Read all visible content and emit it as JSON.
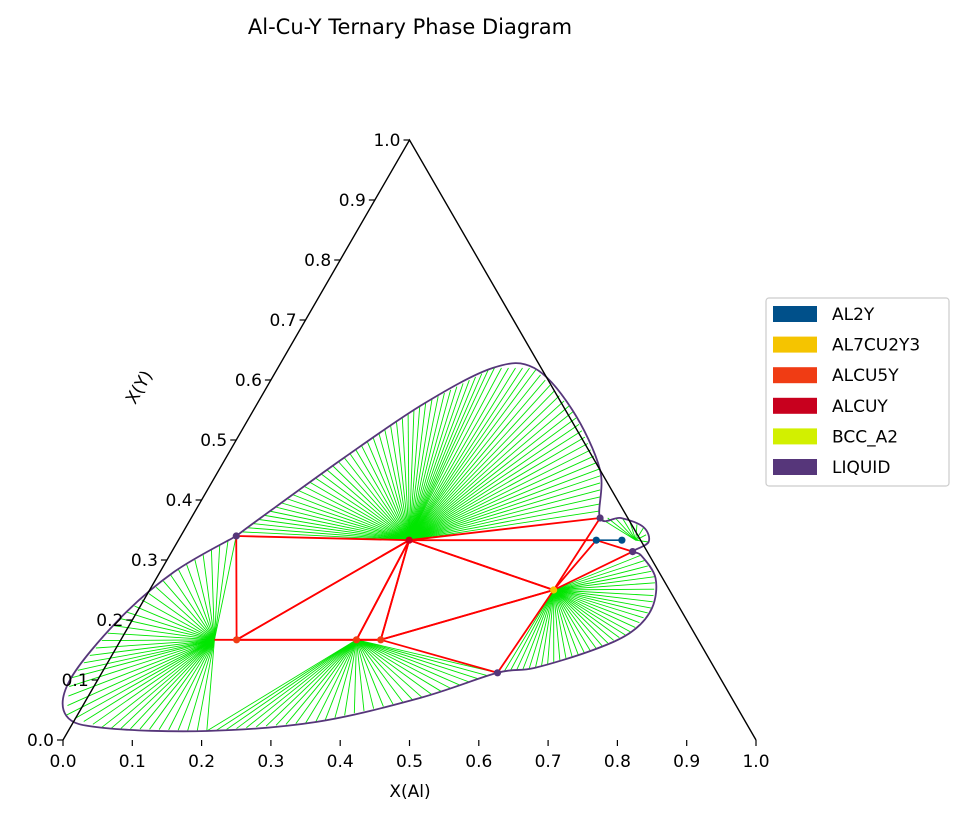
{
  "title": "Al-Cu-Y Ternary Phase Diagram",
  "xlabel": "X(Al)",
  "ylabel": "X(Y)",
  "xticks": [
    "0.0",
    "0.1",
    "0.2",
    "0.3",
    "0.4",
    "0.5",
    "0.6",
    "0.7",
    "0.8",
    "0.9",
    "1.0"
  ],
  "yticks": [
    "0.0",
    "0.1",
    "0.2",
    "0.3",
    "0.4",
    "0.5",
    "0.6",
    "0.7",
    "0.8",
    "0.9",
    "1.0"
  ],
  "legend": [
    {
      "label": "AL2Y",
      "color": "#00508a"
    },
    {
      "label": "AL7CU2Y3",
      "color": "#f5c400"
    },
    {
      "label": "ALCU5Y",
      "color": "#f03c14"
    },
    {
      "label": "ALCUY",
      "color": "#c8001e"
    },
    {
      "label": "BCC_A2",
      "color": "#d2f000"
    },
    {
      "label": "LIQUID",
      "color": "#56367a"
    }
  ],
  "chart_data": {
    "type": "ternary",
    "axes": {
      "x": "X(Al)",
      "y": "X(Y)",
      "xlim": [
        0,
        1
      ],
      "ylim": [
        0,
        1
      ]
    },
    "legend_position": "right",
    "colors": {
      "tieline": "#00e600",
      "triangle": "#ff0000",
      "liquid": "#56367a",
      "al2y_tie": "#00508a"
    },
    "phase_points": [
      {
        "phase": "ALCUY",
        "x": 0.333,
        "y": 0.333
      },
      {
        "phase": "ALCU5Y",
        "x": 0.167,
        "y": 0.167
      },
      {
        "phase": "ALCU5Y",
        "x": 0.34,
        "y": 0.167
      },
      {
        "phase": "ALCU5Y",
        "x": 0.375,
        "y": 0.167
      },
      {
        "phase": "AL7CU2Y3",
        "x": 0.583,
        "y": 0.25
      },
      {
        "phase": "AL2Y",
        "x": 0.603,
        "y": 0.333
      },
      {
        "phase": "AL2Y",
        "x": 0.64,
        "y": 0.333
      },
      {
        "phase": "LIQUID",
        "x": 0.08,
        "y": 0.34
      },
      {
        "phase": "LIQUID",
        "x": 0.571,
        "y": 0.112
      },
      {
        "phase": "LIQUID",
        "x": 0.59,
        "y": 0.37
      },
      {
        "phase": "LIQUID",
        "x": 0.665,
        "y": 0.314
      }
    ],
    "liquid_boundary_1": [
      [
        0.08,
        0.34
      ],
      [
        0.02,
        0.28
      ],
      [
        -0.02,
        0.2
      ],
      [
        -0.04,
        0.1
      ],
      [
        -0.015,
        0.04
      ],
      [
        0.05,
        0.02
      ],
      [
        0.2,
        0.015
      ],
      [
        0.35,
        0.03
      ],
      [
        0.48,
        0.07
      ],
      [
        0.571,
        0.112
      ],
      [
        0.62,
        0.12
      ],
      [
        0.69,
        0.15
      ],
      [
        0.73,
        0.18
      ],
      [
        0.74,
        0.22
      ],
      [
        0.72,
        0.27
      ],
      [
        0.68,
        0.308
      ],
      [
        0.665,
        0.314
      ],
      [
        0.68,
        0.33
      ],
      [
        0.66,
        0.355
      ],
      [
        0.62,
        0.37
      ],
      [
        0.59,
        0.37
      ],
      [
        0.55,
        0.45
      ],
      [
        0.46,
        0.55
      ],
      [
        0.37,
        0.62
      ],
      [
        0.31,
        0.62
      ],
      [
        0.24,
        0.56
      ],
      [
        0.17,
        0.47
      ],
      [
        0.1,
        0.37
      ],
      [
        0.08,
        0.34
      ]
    ],
    "triangles": [
      [
        [
          0.333,
          0.333
        ],
        [
          0.167,
          0.167
        ],
        [
          0.34,
          0.167
        ]
      ],
      [
        [
          0.333,
          0.333
        ],
        [
          0.34,
          0.167
        ],
        [
          0.375,
          0.167
        ]
      ],
      [
        [
          0.333,
          0.333
        ],
        [
          0.375,
          0.167
        ],
        [
          0.583,
          0.25
        ]
      ],
      [
        [
          0.333,
          0.333
        ],
        [
          0.583,
          0.25
        ],
        [
          0.59,
          0.37
        ]
      ],
      [
        [
          0.333,
          0.333
        ],
        [
          0.08,
          0.34
        ],
        [
          0.167,
          0.167
        ]
      ],
      [
        [
          0.375,
          0.167
        ],
        [
          0.571,
          0.112
        ],
        [
          0.583,
          0.25
        ]
      ],
      [
        [
          0.583,
          0.25
        ],
        [
          0.603,
          0.333
        ],
        [
          0.665,
          0.314
        ]
      ]
    ],
    "tie_fans": [
      {
        "center": [
          0.333,
          0.333
        ],
        "arc": [
          [
            0.08,
            0.34
          ],
          [
            0.17,
            0.47
          ],
          [
            0.24,
            0.56
          ],
          [
            0.31,
            0.62
          ],
          [
            0.37,
            0.62
          ],
          [
            0.46,
            0.55
          ],
          [
            0.55,
            0.45
          ],
          [
            0.59,
            0.37
          ]
        ],
        "count": 74
      },
      {
        "center": [
          0.135,
          0.167
        ],
        "arc": [
          [
            0.08,
            0.34
          ],
          [
            0.02,
            0.28
          ],
          [
            -0.02,
            0.2
          ],
          [
            -0.04,
            0.1
          ],
          [
            -0.015,
            0.04
          ],
          [
            0.05,
            0.02
          ],
          [
            0.2,
            0.015
          ]
        ],
        "count": 42
      },
      {
        "center": [
          0.34,
          0.167
        ],
        "arc": [
          [
            0.2,
            0.015
          ],
          [
            0.35,
            0.03
          ],
          [
            0.48,
            0.07
          ],
          [
            0.571,
            0.112
          ]
        ],
        "count": 30
      },
      {
        "center": [
          0.583,
          0.25
        ],
        "arc": [
          [
            0.571,
            0.112
          ],
          [
            0.62,
            0.12
          ],
          [
            0.69,
            0.15
          ],
          [
            0.73,
            0.18
          ],
          [
            0.74,
            0.22
          ],
          [
            0.72,
            0.27
          ],
          [
            0.68,
            0.308
          ]
        ],
        "count": 36
      },
      {
        "center": [
          0.66,
          0.333
        ],
        "arc": [
          [
            0.59,
            0.37
          ],
          [
            0.62,
            0.37
          ],
          [
            0.66,
            0.355
          ],
          [
            0.68,
            0.33
          ]
        ],
        "count": 8
      }
    ],
    "red_lines": [
      [
        [
          0.135,
          0.167
        ],
        [
          0.375,
          0.167
        ]
      ],
      [
        [
          0.333,
          0.333
        ],
        [
          0.603,
          0.333
        ]
      ]
    ]
  }
}
